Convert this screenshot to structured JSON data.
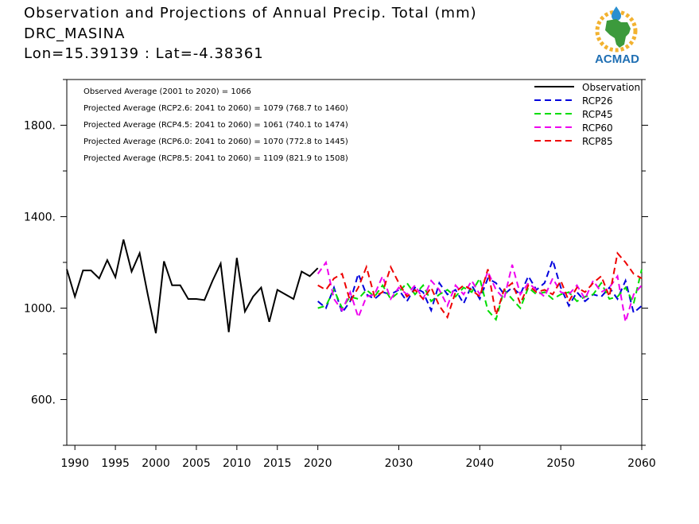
{
  "header": {
    "title": "Observation and Projections of Annual Precip. Total (mm)",
    "location": "DRC_MASINA",
    "coords": "Lon=15.39139 : Lat=-4.38361",
    "logo_text": "ACMAD"
  },
  "colors": {
    "observation": "#000000",
    "RCP26": "#0000dd",
    "RCP45": "#00dd00",
    "RCP60": "#ee00ee",
    "RCP85": "#ee0000"
  },
  "chart_data": {
    "type": "line",
    "xlim": [
      1989,
      2060
    ],
    "ylim": [
      400,
      2000
    ],
    "xticks": [
      1990,
      1995,
      2000,
      2005,
      2010,
      2015,
      2020,
      2030,
      2040,
      2050,
      2060
    ],
    "xtick_labels": [
      "1990",
      "1995",
      "2000",
      "2005",
      "2010",
      "2015",
      "2020",
      "2030",
      "2040",
      "2050",
      "2060"
    ],
    "yticks": [
      600,
      1000,
      1400,
      1800
    ],
    "ytick_labels": [
      "600.",
      "1000.",
      "1400.",
      "1800."
    ],
    "annotations": [
      "Observed Average (2001 to 2020) = 1066",
      "Projected Average (RCP2.6: 2041 to 2060) = 1079 (768.7 to 1460)",
      "Projected Average (RCP4.5: 2041 to 2060) = 1061 (740.1 to 1474)",
      "Projected Average (RCP6.0: 2041 to 2060) = 1070 (772.8 to 1445)",
      "Projected Average (RCP8.5: 2041 to 2060) = 1109 (821.9 to 1508)"
    ],
    "legend_position": "top-right",
    "series": [
      {
        "name": "Observation",
        "style": "solid",
        "x": [
          1989,
          1990,
          1991,
          1992,
          1993,
          1994,
          1995,
          1996,
          1997,
          1998,
          1999,
          2000,
          2001,
          2002,
          2003,
          2004,
          2005,
          2006,
          2007,
          2008,
          2009,
          2010,
          2011,
          2012,
          2013,
          2014,
          2015,
          2016,
          2017,
          2018,
          2019,
          2020
        ],
        "y": [
          1170,
          1050,
          1165,
          1165,
          1130,
          1210,
          1135,
          1300,
          1160,
          1240,
          1060,
          890,
          1205,
          1100,
          1100,
          1040,
          1040,
          1035,
          1120,
          1195,
          895,
          1220,
          985,
          1050,
          1090,
          940,
          1080,
          1060,
          1040,
          1160,
          1140,
          1175
        ]
      },
      {
        "name": "RCP26",
        "style": "dashed",
        "x": [
          2020,
          2021,
          2022,
          2023,
          2024,
          2025,
          2026,
          2027,
          2028,
          2029,
          2030,
          2031,
          2032,
          2033,
          2034,
          2035,
          2036,
          2037,
          2038,
          2039,
          2040,
          2041,
          2042,
          2043,
          2044,
          2045,
          2046,
          2047,
          2048,
          2049,
          2050,
          2051,
          2052,
          2053,
          2054,
          2055,
          2056,
          2057,
          2058,
          2059,
          2060
        ],
        "y": [
          1030,
          1000,
          1090,
          980,
          1030,
          1150,
          1060,
          1040,
          1070,
          1060,
          1080,
          1030,
          1090,
          1070,
          990,
          1110,
          1060,
          1080,
          1020,
          1100,
          1040,
          1130,
          1110,
          1060,
          1090,
          1060,
          1140,
          1080,
          1110,
          1210,
          1090,
          1010,
          1070,
          1030,
          1060,
          1050,
          1090,
          1040,
          1120,
          980,
          1010
        ]
      },
      {
        "name": "RCP45",
        "style": "dashed",
        "x": [
          2020,
          2021,
          2022,
          2023,
          2024,
          2025,
          2026,
          2027,
          2028,
          2029,
          2030,
          2031,
          2032,
          2033,
          2034,
          2035,
          2036,
          2037,
          2038,
          2039,
          2040,
          2041,
          2042,
          2043,
          2044,
          2045,
          2046,
          2047,
          2048,
          2049,
          2050,
          2051,
          2052,
          2053,
          2054,
          2055,
          2056,
          2057,
          2058,
          2059,
          2060
        ],
        "y": [
          1000,
          1010,
          1080,
          1000,
          1050,
          1040,
          1080,
          1050,
          1100,
          1040,
          1070,
          1110,
          1060,
          1100,
          1030,
          1060,
          1080,
          1050,
          1090,
          1070,
          1130,
          990,
          950,
          1080,
          1040,
          1000,
          1090,
          1060,
          1070,
          1040,
          1060,
          1070,
          1030,
          1050,
          1060,
          1110,
          1040,
          1050,
          1090,
          1020,
          1170
        ]
      },
      {
        "name": "RCP60",
        "style": "dashed",
        "x": [
          2020,
          2021,
          2022,
          2023,
          2024,
          2025,
          2026,
          2027,
          2028,
          2029,
          2030,
          2031,
          2032,
          2033,
          2034,
          2035,
          2036,
          2037,
          2038,
          2039,
          2040,
          2041,
          2042,
          2043,
          2044,
          2045,
          2046,
          2047,
          2048,
          2049,
          2050,
          2051,
          2052,
          2053,
          2054,
          2055,
          2056,
          2057,
          2058,
          2059,
          2060
        ],
        "y": [
          1150,
          1200,
          1040,
          990,
          1070,
          960,
          1050,
          1060,
          1140,
          1040,
          1090,
          1060,
          1100,
          1040,
          1120,
          1080,
          1010,
          1100,
          1060,
          1120,
          1060,
          1160,
          1080,
          1040,
          1190,
          1060,
          1110,
          1080,
          1050,
          1130,
          1070,
          1060,
          1100,
          1040,
          1120,
          1070,
          1090,
          1140,
          940,
          1060,
          1100
        ]
      },
      {
        "name": "RCP85",
        "style": "dashed",
        "x": [
          2020,
          2021,
          2022,
          2023,
          2024,
          2025,
          2026,
          2027,
          2028,
          2029,
          2030,
          2031,
          2032,
          2033,
          2034,
          2035,
          2036,
          2037,
          2038,
          2039,
          2040,
          2041,
          2042,
          2043,
          2044,
          2045,
          2046,
          2047,
          2048,
          2049,
          2050,
          2051,
          2052,
          2053,
          2054,
          2055,
          2056,
          2057,
          2058,
          2059,
          2060
        ],
        "y": [
          1100,
          1080,
          1130,
          1150,
          1030,
          1090,
          1180,
          1050,
          1070,
          1180,
          1110,
          1050,
          1080,
          1040,
          1090,
          1010,
          960,
          1070,
          1100,
          1080,
          1050,
          1170,
          970,
          1080,
          1110,
          1020,
          1100,
          1070,
          1080,
          1060,
          1120,
          1030,
          1090,
          1070,
          1110,
          1140,
          1050,
          1240,
          1200,
          1150,
          1130
        ]
      }
    ]
  }
}
